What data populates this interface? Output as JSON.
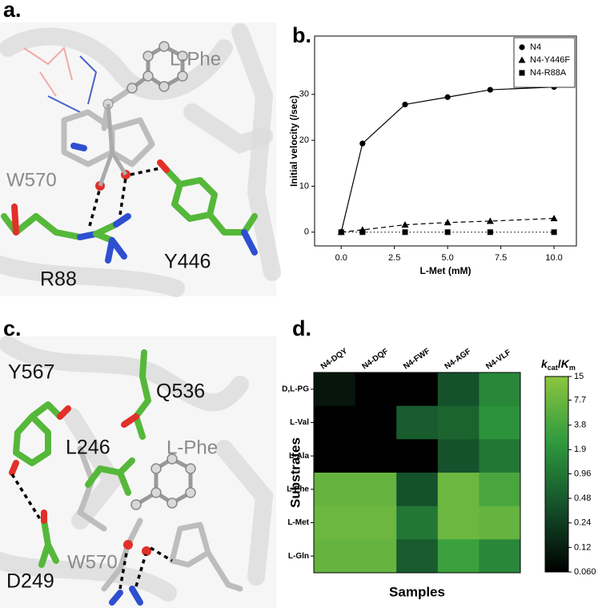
{
  "panels": [
    {
      "label": "a.",
      "annotations": [
        "L-Phe",
        "W570",
        "R88",
        "Y446"
      ]
    },
    {
      "label": "b."
    },
    {
      "label": "c.",
      "annotations": [
        "Y567",
        "Q536",
        "L246",
        "L-Phe",
        "W570",
        "D249"
      ]
    },
    {
      "label": "d."
    }
  ],
  "chart_data": [
    {
      "type": "line",
      "xlabel": "L-Met (mM)",
      "ylabel": "Initial velocity (/sec)",
      "x": [
        0,
        1,
        3,
        5,
        7,
        10
      ],
      "xlim": [
        -1.25,
        11.05
      ],
      "xticks": [
        {
          "value": 0,
          "label": "0.0"
        },
        2.5,
        {
          "value": 5,
          "label": "5.0"
        },
        7.5,
        {
          "value": 10,
          "label": "10.0"
        }
      ],
      "ylim": [
        -3,
        42.7
      ],
      "yticks": [
        0,
        10,
        20,
        30
      ],
      "legend": "upper right",
      "series": [
        {
          "name": "N4",
          "color": "#000000",
          "marker": "circle",
          "linestyle": "solid",
          "values": [
            0,
            19.3,
            27.8,
            29.4,
            31,
            31.6
          ]
        },
        {
          "name": "N4-Y446F",
          "color": "#000000",
          "marker": "triangle",
          "linestyle": "dashed",
          "values": [
            0,
            0.5,
            1.6,
            2.1,
            2.4,
            3.0
          ]
        },
        {
          "name": "N4-R88A",
          "color": "#000000",
          "marker": "square",
          "linestyle": "dotted",
          "values": [
            0,
            0,
            0,
            0,
            0,
            0
          ]
        }
      ]
    },
    {
      "type": "heatmap",
      "xlabel": "Samples",
      "ylabel": "Substrates",
      "categories": [
        "N4-DQY",
        "N4-DQF",
        "N4-FWF",
        "N4-AGF",
        "N4-VLF"
      ],
      "rows": [
        "D,L-PG",
        "L-Val",
        "L-Ala",
        "L-Phe",
        "L-Met",
        "L-Gln"
      ],
      "values": [
        [
          0.1,
          0.06,
          0.06,
          0.4,
          1.5
        ],
        [
          0.06,
          0.06,
          0.5,
          0.6,
          2
        ],
        [
          0.06,
          0.06,
          0.06,
          0.4,
          1
        ],
        [
          7,
          7,
          0.4,
          8,
          4
        ],
        [
          8,
          8,
          1,
          8,
          7
        ],
        [
          7,
          7,
          0.5,
          3,
          1.5
        ]
      ],
      "log_scale": true,
      "clim": [
        0.06,
        15
      ],
      "cticks": [
        15,
        7.7,
        3.8,
        1.9,
        0.96,
        0.48,
        0.24,
        0.12,
        {
          "value": 0.06,
          "label": "0.060"
        }
      ],
      "colorscale": [
        "#000000",
        "#14502a",
        "#2f9a3e",
        "#8cc63f"
      ],
      "colorbar_label": [
        {
          "text": "k",
          "style": "italic"
        },
        {
          "text": "cat",
          "style": "sub"
        },
        {
          "text": "/",
          "style": "normal"
        },
        {
          "text": "K",
          "style": "italic"
        },
        {
          "text": "m",
          "style": "sub"
        }
      ]
    }
  ]
}
